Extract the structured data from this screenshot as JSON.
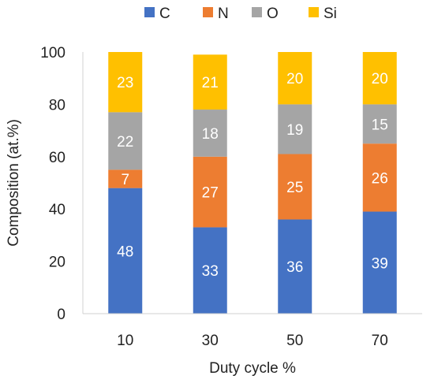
{
  "chart_data": {
    "type": "bar",
    "stacked": true,
    "categories": [
      "10",
      "30",
      "50",
      "70"
    ],
    "series": [
      {
        "name": "C",
        "color": "#4472C4",
        "values": [
          48,
          33,
          36,
          39
        ]
      },
      {
        "name": "N",
        "color": "#ED7D31",
        "values": [
          7,
          27,
          25,
          26
        ]
      },
      {
        "name": "O",
        "color": "#A5A5A5",
        "values": [
          22,
          18,
          19,
          15
        ]
      },
      {
        "name": "Si",
        "color": "#FFC000",
        "values": [
          23,
          21,
          20,
          20
        ]
      }
    ],
    "title": "",
    "xlabel": "Duty cycle %",
    "ylabel": "Composition (at.%)",
    "ylim": [
      0,
      100
    ],
    "yticks": [
      0,
      20,
      40,
      60,
      80,
      100
    ],
    "grid": false,
    "legend_position": "top",
    "data_labels": true
  }
}
